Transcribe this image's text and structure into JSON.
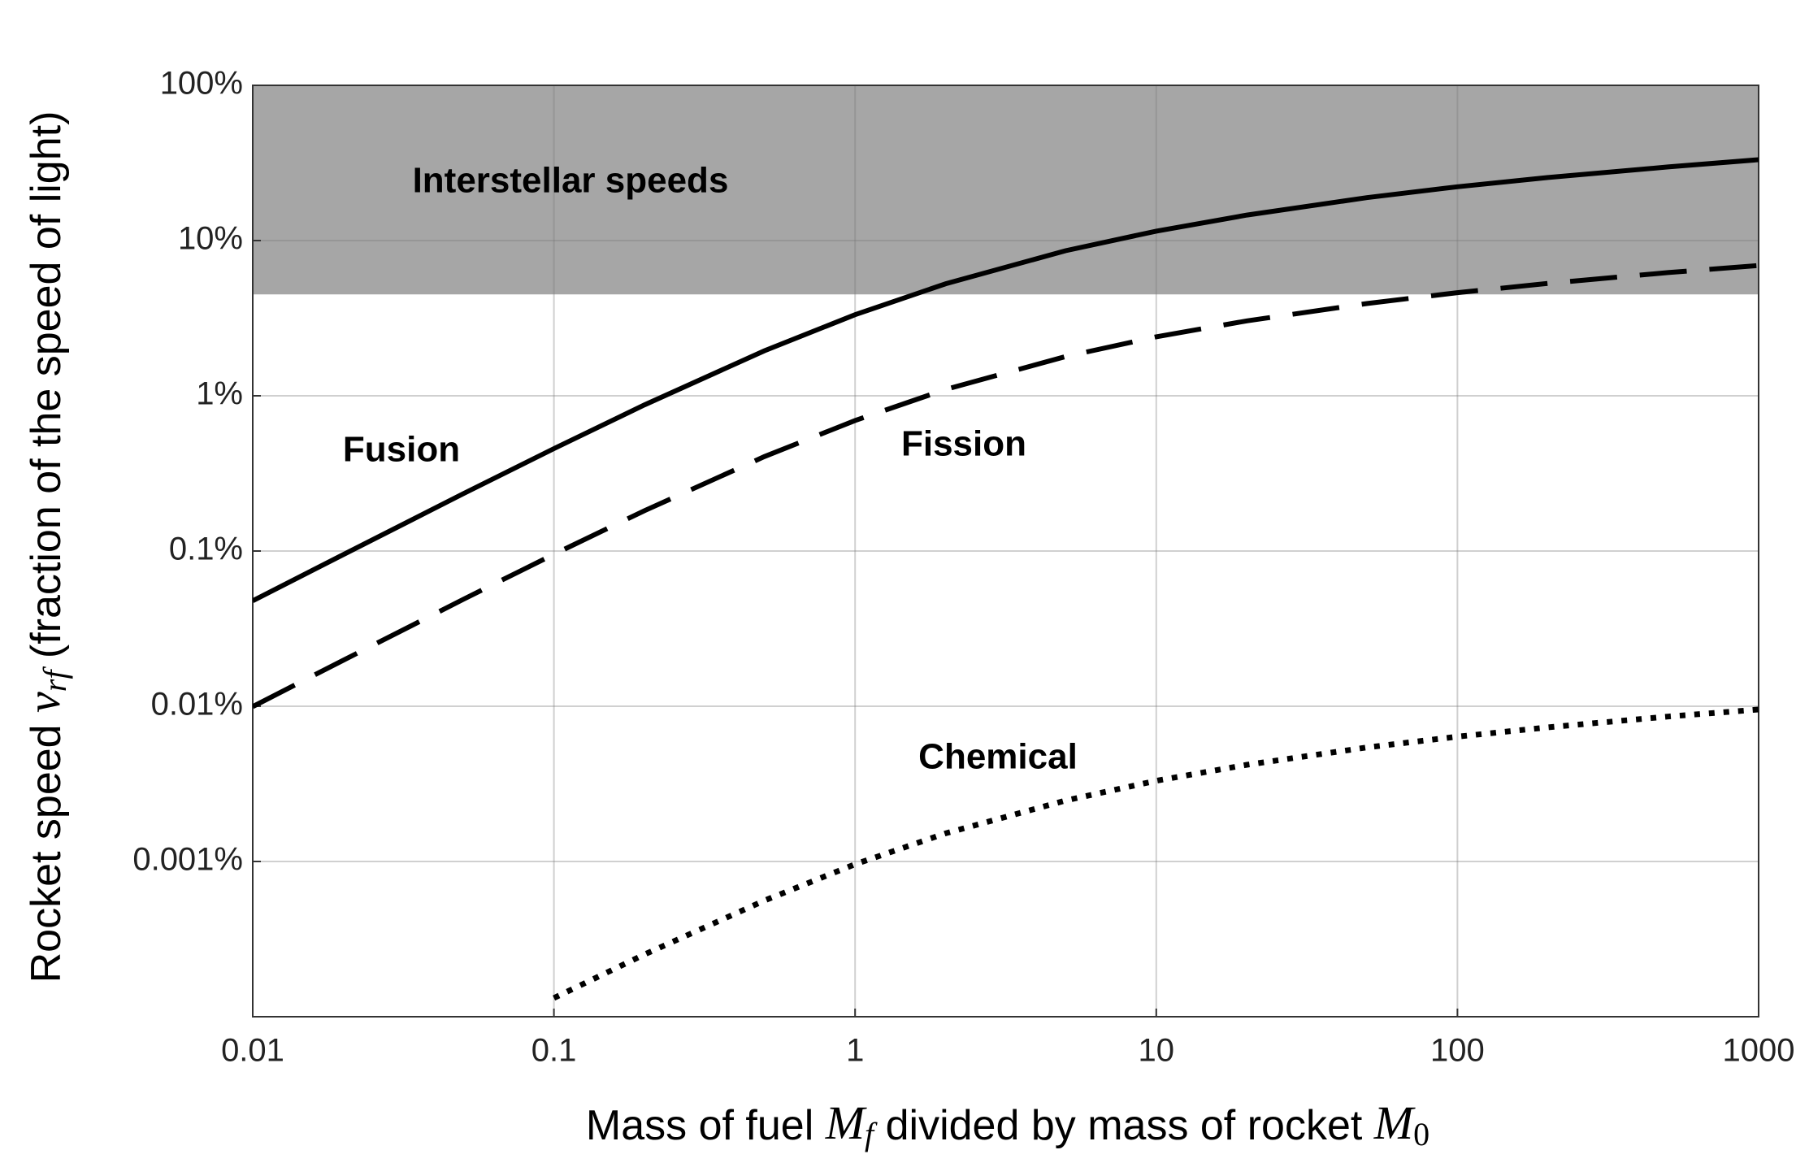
{
  "chart_data": {
    "type": "line",
    "x_label": [
      {
        "text": "Mass of fuel ",
        "style": "normal"
      },
      {
        "text": "M",
        "style": "math"
      },
      {
        "text": "f",
        "style": "sub"
      },
      {
        "text": " divided by mass of rocket ",
        "style": "normal"
      },
      {
        "text": "M",
        "style": "math"
      },
      {
        "text": "0",
        "style": "sub-upright"
      }
    ],
    "y_label": [
      {
        "text": "Rocket speed ",
        "style": "normal"
      },
      {
        "text": "v",
        "style": "math"
      },
      {
        "text": "rf",
        "style": "sub"
      },
      {
        "text": " (fraction of the speed of light)",
        "style": "normal"
      }
    ],
    "x_scale": "log",
    "y_scale": "log",
    "grid": true,
    "xlim": [
      0.01,
      1000
    ],
    "xticks": [
      0.01,
      0.1,
      1,
      10,
      100,
      1000
    ],
    "ylim": [
      0.0001,
      100
    ],
    "yticks": [
      {
        "value": 0.001,
        "label": "0.001%"
      },
      {
        "value": 0.01,
        "label": "0.01%"
      },
      {
        "value": 0.1,
        "label": "0.1%"
      },
      {
        "value": 1,
        "label": "1%"
      },
      {
        "value": 10,
        "label": "10%"
      },
      {
        "value": 100,
        "label": "100%"
      }
    ],
    "shaded_region": {
      "label": "Interstellar speeds",
      "ymin": 4.5,
      "ymax": 100,
      "color": "#a6a6a6"
    },
    "x": [
      0.01,
      0.02,
      0.05,
      0.1,
      0.2,
      0.5,
      1,
      2,
      5,
      10,
      20,
      50,
      100,
      200,
      500,
      1000
    ],
    "series": [
      {
        "name": "Fusion",
        "color": "#000000",
        "line_style": "solid",
        "values": [
          0.0478,
          0.095,
          0.234,
          0.457,
          0.875,
          1.95,
          3.33,
          5.27,
          8.6,
          11.5,
          14.6,
          18.9,
          22.2,
          25.5,
          29.8,
          33.2
        ]
      },
      {
        "name": "Fission",
        "color": "#000000",
        "line_style": "dashed",
        "values": [
          0.00995,
          0.0198,
          0.0488,
          0.0953,
          0.182,
          0.406,
          0.693,
          1.1,
          1.79,
          2.4,
          3.04,
          3.93,
          4.62,
          5.3,
          6.22,
          6.91
        ]
      },
      {
        "name": "Chemical",
        "color": "#000000",
        "line_style": "dotted",
        "values": [
          null,
          null,
          null,
          0.000132,
          0.000252,
          0.00056,
          0.00096,
          0.00152,
          0.00247,
          0.00331,
          0.0042,
          0.00543,
          0.00637,
          0.00732,
          0.00858,
          0.00953
        ]
      }
    ]
  }
}
